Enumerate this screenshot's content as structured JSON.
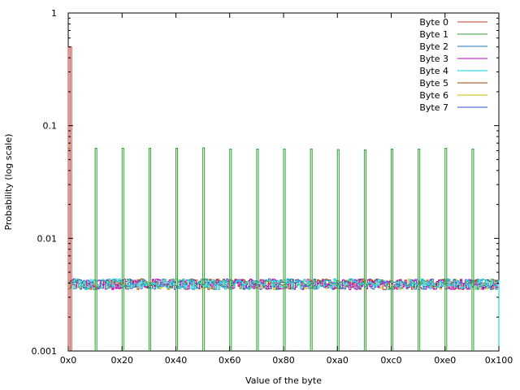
{
  "chart_data": {
    "type": "line",
    "style": "histogram steps",
    "xlabel": "Value of the byte",
    "ylabel": "Probability (log scale)",
    "xlim": [
      0,
      256
    ],
    "ylim": [
      0.001,
      1
    ],
    "y_scale": "log",
    "grid": false,
    "legend_position": "top-right",
    "x_ticks": [
      {
        "value": 0,
        "label": "0x0"
      },
      {
        "value": 32,
        "label": "0x20"
      },
      {
        "value": 64,
        "label": "0x40"
      },
      {
        "value": 96,
        "label": "0x60"
      },
      {
        "value": 128,
        "label": "0x80"
      },
      {
        "value": 160,
        "label": "0xa0"
      },
      {
        "value": 192,
        "label": "0xc0"
      },
      {
        "value": 224,
        "label": "0xe0"
      },
      {
        "value": 256,
        "label": "0x100"
      }
    ],
    "y_ticks": [
      {
        "value": 0.001,
        "label": "0.001"
      },
      {
        "value": 0.01,
        "label": "0.01"
      },
      {
        "value": 0.1,
        "label": "0.1"
      },
      {
        "value": 1,
        "label": "1"
      }
    ],
    "series": [
      {
        "name": "Byte 0",
        "color": "#c0392b",
        "pattern": "two bins at 0x0 and 0x1 with probability 0.5 each, zero elsewhere",
        "spikes": [
          {
            "x": 0,
            "y": 0.5
          },
          {
            "x": 1,
            "y": 0.5
          }
        ]
      },
      {
        "name": "Byte 1",
        "color": "#2ca02c",
        "pattern": "16 spikes at 0x00,0x10,...,0xf0 with probability ~0.0625 each, zero elsewhere",
        "spikes": [
          {
            "x": 0,
            "y": 0.0625
          },
          {
            "x": 16,
            "y": 0.063
          },
          {
            "x": 32,
            "y": 0.063
          },
          {
            "x": 48,
            "y": 0.063
          },
          {
            "x": 64,
            "y": 0.063
          },
          {
            "x": 80,
            "y": 0.0635
          },
          {
            "x": 96,
            "y": 0.062
          },
          {
            "x": 112,
            "y": 0.062
          },
          {
            "x": 128,
            "y": 0.062
          },
          {
            "x": 144,
            "y": 0.062
          },
          {
            "x": 160,
            "y": 0.0615
          },
          {
            "x": 176,
            "y": 0.061
          },
          {
            "x": 192,
            "y": 0.062
          },
          {
            "x": 208,
            "y": 0.062
          },
          {
            "x": 224,
            "y": 0.063
          },
          {
            "x": 240,
            "y": 0.062
          }
        ]
      },
      {
        "name": "Byte 2",
        "color": "#1f77b4",
        "pattern": "uniform ~0.0039 with noise"
      },
      {
        "name": "Byte 3",
        "color": "#c000c0",
        "pattern": "uniform ~0.0039 with noise"
      },
      {
        "name": "Byte 4",
        "color": "#00d0d0",
        "pattern": "uniform ~0.0039 with noise"
      },
      {
        "name": "Byte 5",
        "color": "#a04000",
        "pattern": "uniform ~0.0039 with noise"
      },
      {
        "name": "Byte 6",
        "color": "#c8b400",
        "pattern": "uniform ~0.0039 with noise"
      },
      {
        "name": "Byte 7",
        "color": "#3050d0",
        "pattern": "uniform ~0.0039 with noise"
      }
    ],
    "uniform_level": 0.0039
  }
}
